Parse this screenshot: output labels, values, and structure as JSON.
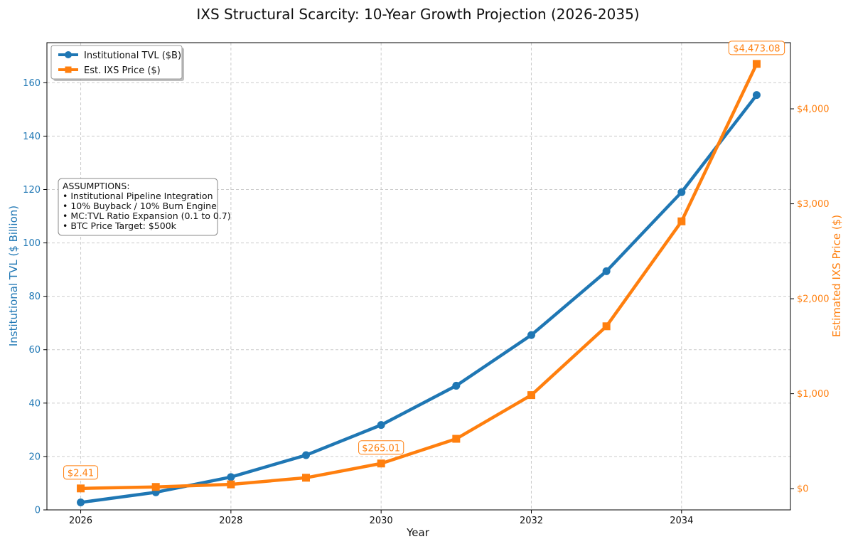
{
  "chart_data": {
    "type": "line",
    "title": "IXS Structural Scarcity: 10-Year Growth Projection (2026-2035)",
    "xlabel": "Year",
    "ylabel_left": "Institutional TVL ($ Billion)",
    "ylabel_right": "Estimated IXS Price ($)",
    "x": [
      2026,
      2027,
      2028,
      2029,
      2030,
      2031,
      2032,
      2033,
      2034,
      2035
    ],
    "xlim": [
      2025.55,
      2035.45
    ],
    "x_ticks": [
      2026,
      2028,
      2030,
      2032,
      2034
    ],
    "x_tick_labels": [
      "2026",
      "2028",
      "2030",
      "2032",
      "2034"
    ],
    "ylim_left": [
      0,
      175
    ],
    "y_ticks_left": [
      0,
      20,
      40,
      60,
      80,
      100,
      120,
      140,
      160
    ],
    "y_tick_labels_left": [
      "0",
      "20",
      "40",
      "60",
      "80",
      "100",
      "120",
      "140",
      "160"
    ],
    "ylim_right": [
      -223.65,
      4696.73
    ],
    "y_ticks_right": [
      0,
      1000,
      2000,
      3000,
      4000
    ],
    "y_tick_labels_right": [
      "$0",
      "$1,000",
      "$2,000",
      "$3,000",
      "$4,000"
    ],
    "grid": true,
    "legend_position": "top-left",
    "series": [
      {
        "name": "Institutional TVL ($B)",
        "axis": "left",
        "color": "#1f77b4",
        "marker": "circle",
        "values": [
          2.8,
          6.6,
          12.3,
          20.5,
          31.8,
          46.5,
          65.5,
          89.4,
          119.0,
          155.4
        ]
      },
      {
        "name": "Est. IXS Price ($)",
        "axis": "right",
        "color": "#ff7f0e",
        "marker": "square",
        "values": [
          2.41,
          18,
          45,
          115,
          265.01,
          525,
          985,
          1710,
          2815,
          4473.08
        ]
      }
    ],
    "annotations": [
      {
        "series": 1,
        "index": 0,
        "text": "$2.41"
      },
      {
        "series": 1,
        "index": 4,
        "text": "$265.01"
      },
      {
        "series": 1,
        "index": 9,
        "text": "$4,473.08"
      }
    ],
    "assumptions": {
      "heading": "ASSUMPTIONS:",
      "items": [
        "• Institutional Pipeline Integration",
        "• 10% Buyback / 10% Burn Engine",
        "• MC:TVL Ratio Expansion (0.1 to 0.7)",
        "• BTC Price Target: $500k"
      ]
    },
    "colors": {
      "left_axis": "#1f77b4",
      "right_axis": "#ff7f0e",
      "grid": "#cccccc",
      "frame": "#000000"
    }
  }
}
